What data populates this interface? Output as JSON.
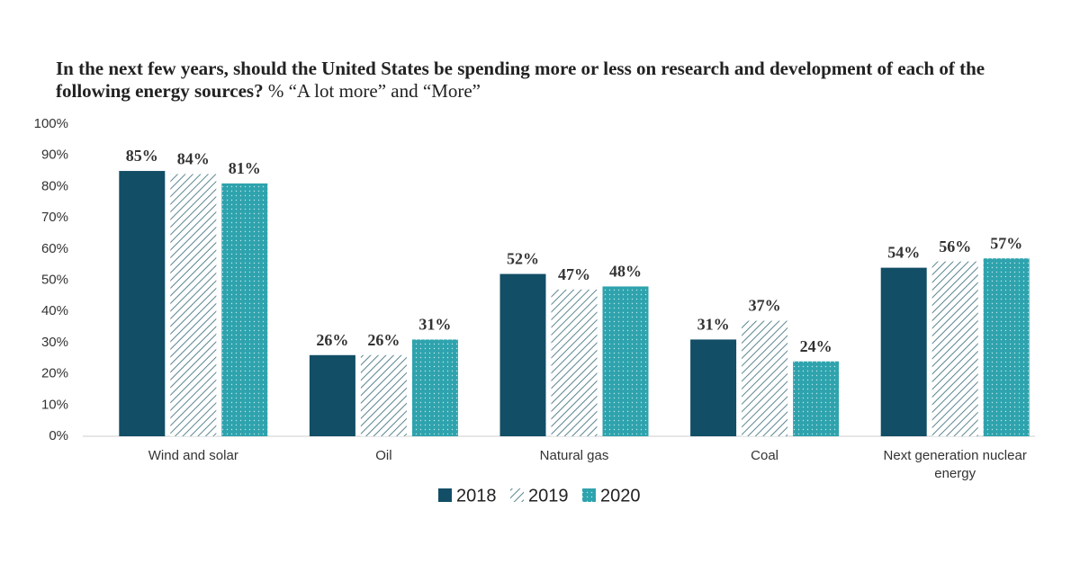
{
  "chart_data": {
    "type": "bar",
    "title": "In the next few years, should the United States be spending more or less on research and development of each of the following energy sources?",
    "subtitle": "% “A lot more” and “More”",
    "categories": [
      "Wind and solar",
      "Oil",
      "Natural gas",
      "Coal",
      "Next generation nuclear energy"
    ],
    "series": [
      {
        "name": "2018",
        "color": "#124e66",
        "pattern": "solid",
        "values": [
          85,
          26,
          52,
          31,
          54
        ],
        "value_labels": [
          "85%",
          "26%",
          "52%",
          "31%",
          "54%"
        ]
      },
      {
        "name": "2019",
        "color": "#5b8591",
        "pattern": "hatch",
        "values": [
          84,
          26,
          47,
          37,
          56
        ],
        "value_labels": [
          "84%",
          "26%",
          "47%",
          "37%",
          "56%"
        ]
      },
      {
        "name": "2020",
        "color": "#2ea3ad",
        "pattern": "dots",
        "values": [
          81,
          31,
          48,
          24,
          57
        ],
        "value_labels": [
          "81%",
          "31%",
          "48%",
          "24%",
          "57%"
        ]
      }
    ],
    "ylim": [
      0,
      100
    ],
    "yticks": [
      {
        "value": 0,
        "label": "0%"
      },
      {
        "value": 10,
        "label": "10%"
      },
      {
        "value": 20,
        "label": "20%"
      },
      {
        "value": 30,
        "label": "30%"
      },
      {
        "value": 40,
        "label": "40%"
      },
      {
        "value": 50,
        "label": "50%"
      },
      {
        "value": 60,
        "label": "60%"
      },
      {
        "value": 70,
        "label": "70%"
      },
      {
        "value": 80,
        "label": "80%"
      },
      {
        "value": 90,
        "label": "90%"
      },
      {
        "value": 100,
        "label": "100%"
      }
    ],
    "grid": false,
    "legend": "bottom"
  }
}
